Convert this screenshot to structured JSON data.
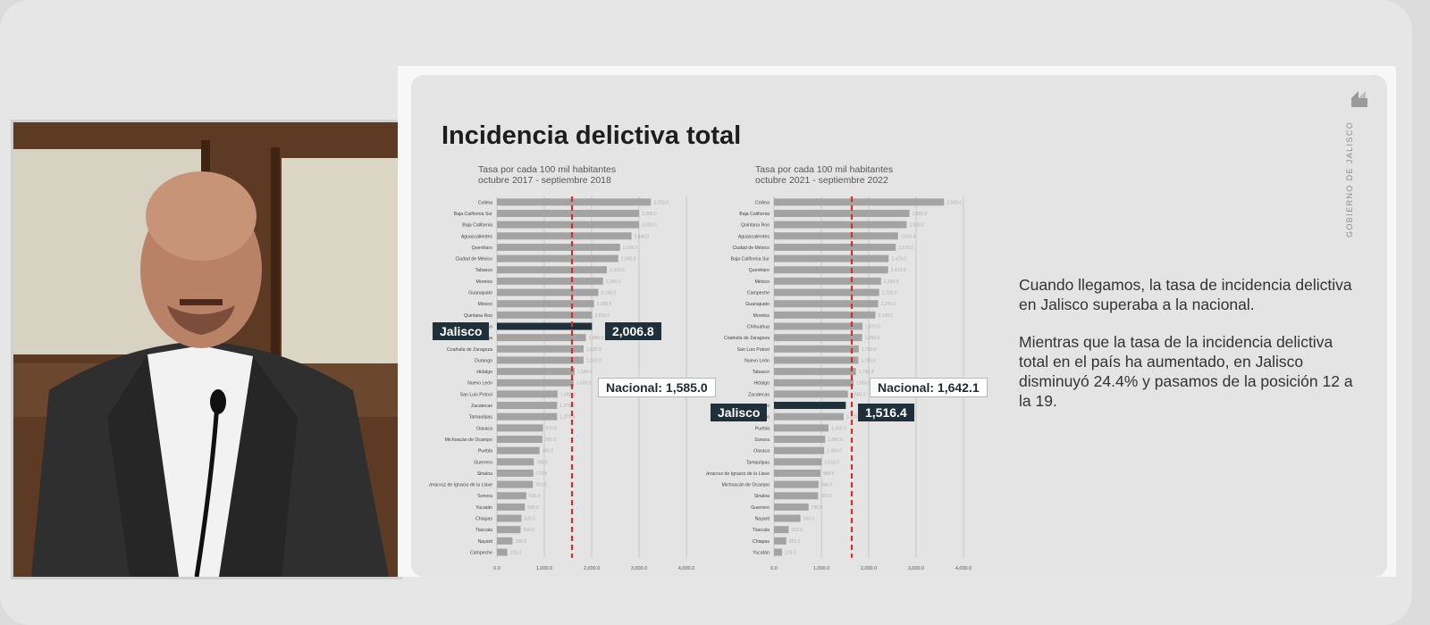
{
  "slide": {
    "title": "Incidencia delictiva total",
    "side_text": [
      "Cuando llegamos, la tasa de incidencia delictiva en Jalisco superaba a la nacional.",
      "Mientras que la tasa de la incidencia delictiva total en el país ha aumentado, en Jalisco disminuyó 24.4% y pasamos de la posición 12 a la 19."
    ],
    "branding": "GOBIERNO DE JALISCO"
  },
  "colors": {
    "bar": "#a3a3a3",
    "highlight": "#20303a",
    "national_line": "#d32f2f"
  },
  "chart_data": [
    {
      "type": "bar",
      "orientation": "horizontal",
      "subtitle": "Tasa por cada 100 mil habitantes",
      "period": "octubre 2017 - septiembre 2018",
      "categories": [
        "Colima",
        "Baja California Sur",
        "Baja California",
        "Aguascalientes",
        "Querétaro",
        "Ciudad de México",
        "Tabasco",
        "Morelos",
        "Guanajuato",
        "México",
        "Quintana Roo",
        "Jalisco",
        "Chihuahua",
        "Coahuila de Zaragoza",
        "Durango",
        "Hidalgo",
        "Nuevo León",
        "San Luis Potosí",
        "Zacatecas",
        "Tamaulipas",
        "Oaxaca",
        "Michoacán de Ocampo",
        "Puebla",
        "Guerrero",
        "Sinaloa",
        "Veracruz de Ignacio de la Llave",
        "Sonora",
        "Yucatán",
        "Chiapas",
        "Tlaxcala",
        "Nayarit",
        "Campeche"
      ],
      "values": [
        3250,
        3000,
        3000,
        2840,
        2600,
        2560,
        2320,
        2240,
        2140,
        2050,
        2010,
        2006.8,
        1880,
        1830,
        1830,
        1640,
        1620,
        1280,
        1270,
        1270,
        970,
        960,
        900,
        780,
        770,
        760,
        620,
        590,
        520,
        500,
        330,
        220
      ],
      "highlight": {
        "category": "Jalisco",
        "label": "Jalisco",
        "value_label": "2,006.8"
      },
      "national": {
        "value": 1585.0,
        "label": "Nacional: 1,585.0"
      },
      "xlim": [
        0,
        4000
      ],
      "xticks": [
        "0.0",
        "1,000.0",
        "2,000.0",
        "3,000.0",
        "4,000.0"
      ],
      "grid": true
    },
    {
      "type": "bar",
      "orientation": "horizontal",
      "subtitle": "Tasa por cada 100 mil habitantes",
      "period": "octubre 2021 - septiembre 2022",
      "categories": [
        "Colima",
        "Baja California",
        "Quintana Roo",
        "Aguascalientes",
        "Ciudad de México",
        "Baja California Sur",
        "Querétaro",
        "México",
        "Campeche",
        "Guanajuato",
        "Morelos",
        "Chihuahua",
        "Coahuila de Zaragoza",
        "San Luis Potosí",
        "Nuevo León",
        "Tabasco",
        "Hidalgo",
        "Zacatecas",
        "Jalisco",
        "Durango",
        "Puebla",
        "Sonora",
        "Oaxaca",
        "Tamaulipas",
        "Veracruz de Ignacio de la Llave",
        "Michoacán de Ocampo",
        "Sinaloa",
        "Guerrero",
        "Nayarit",
        "Tlaxcala",
        "Chiapas",
        "Yucatán"
      ],
      "values": [
        3590,
        2860,
        2800,
        2620,
        2570,
        2420,
        2410,
        2260,
        2220,
        2200,
        2140,
        1870,
        1860,
        1790,
        1780,
        1730,
        1680,
        1560,
        1516.4,
        1470,
        1150,
        1080,
        1060,
        1010,
        980,
        940,
        930,
        730,
        560,
        310,
        260,
        170
      ],
      "highlight": {
        "category": "Jalisco",
        "label": "Jalisco",
        "value_label": "1,516.4"
      },
      "national": {
        "value": 1642.1,
        "label": "Nacional: 1,642.1"
      },
      "xlim": [
        0,
        4000
      ],
      "xticks": [
        "0.0",
        "1,000.0",
        "2,000.0",
        "3,000.0",
        "4,000.0"
      ],
      "grid": true
    }
  ]
}
